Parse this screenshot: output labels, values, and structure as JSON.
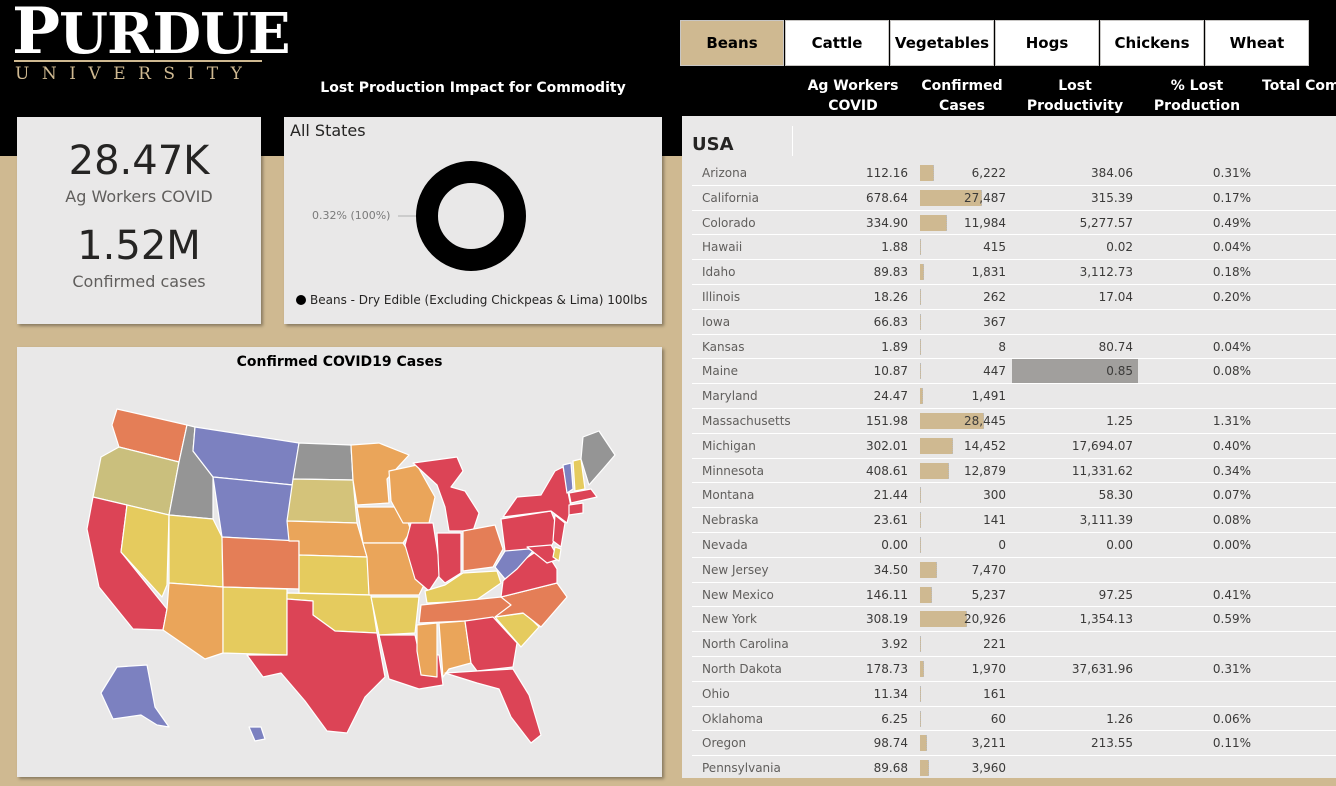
{
  "brand": {
    "name_big": "P",
    "name_rest": "URDUE",
    "sub": "UNIVERSITY"
  },
  "section_title": "Lost Production Impact for Commodity",
  "kpis": {
    "workers_value": "28.47K",
    "workers_label": "Ag Workers COVID",
    "cases_value": "1.52M",
    "cases_label": "Confirmed cases"
  },
  "donut": {
    "title": "All States",
    "label": "0.32% (100%)",
    "legend": "Beans - Dry Edible (Excluding Chickpeas & Lima) 100lbs",
    "share": 1.0,
    "color": "#000000"
  },
  "map": {
    "title": "Confirmed COVID19 Cases"
  },
  "tabs": [
    {
      "label": "Beans",
      "active": true
    },
    {
      "label": "Cattle",
      "active": false
    },
    {
      "label": "Vegetables",
      "active": false
    },
    {
      "label": "Hogs",
      "active": false
    },
    {
      "label": "Chickens",
      "active": false
    },
    {
      "label": "Wheat",
      "active": false
    }
  ],
  "columns": {
    "ag_workers": "Ag Workers COVID",
    "cases": "Confirmed Cases",
    "lost": "Lost Productivity",
    "pct": "% Lost Production",
    "total": "Total Comm"
  },
  "table": {
    "group": "USA",
    "max_cases": 28445,
    "rows": [
      {
        "state": "Arizona",
        "ag": "112.16",
        "cases": "6,222",
        "cases_num": 6222,
        "lost": "384.06",
        "pct": "0.31%"
      },
      {
        "state": "California",
        "ag": "678.64",
        "cases": "27,487",
        "cases_num": 27487,
        "lost": "315.39",
        "pct": "0.17%"
      },
      {
        "state": "Colorado",
        "ag": "334.90",
        "cases": "11,984",
        "cases_num": 11984,
        "lost": "5,277.57",
        "pct": "0.49%"
      },
      {
        "state": "Hawaii",
        "ag": "1.88",
        "cases": "415",
        "cases_num": 415,
        "lost": "0.02",
        "pct": "0.04%"
      },
      {
        "state": "Idaho",
        "ag": "89.83",
        "cases": "1,831",
        "cases_num": 1831,
        "lost": "3,112.73",
        "pct": "0.18%"
      },
      {
        "state": "Illinois",
        "ag": "18.26",
        "cases": "262",
        "cases_num": 262,
        "lost": "17.04",
        "pct": "0.20%"
      },
      {
        "state": "Iowa",
        "ag": "66.83",
        "cases": "367",
        "cases_num": 367,
        "lost": "",
        "pct": ""
      },
      {
        "state": "Kansas",
        "ag": "1.89",
        "cases": "8",
        "cases_num": 8,
        "lost": "80.74",
        "pct": "0.04%"
      },
      {
        "state": "Maine",
        "ag": "10.87",
        "cases": "447",
        "cases_num": 447,
        "lost": "0.85",
        "pct": "0.08%",
        "highlight": true
      },
      {
        "state": "Maryland",
        "ag": "24.47",
        "cases": "1,491",
        "cases_num": 1491,
        "lost": "",
        "pct": ""
      },
      {
        "state": "Massachusetts",
        "ag": "151.98",
        "cases": "28,445",
        "cases_num": 28445,
        "lost": "1.25",
        "pct": "1.31%"
      },
      {
        "state": "Michigan",
        "ag": "302.01",
        "cases": "14,452",
        "cases_num": 14452,
        "lost": "17,694.07",
        "pct": "0.40%"
      },
      {
        "state": "Minnesota",
        "ag": "408.61",
        "cases": "12,879",
        "cases_num": 12879,
        "lost": "11,331.62",
        "pct": "0.34%"
      },
      {
        "state": "Montana",
        "ag": "21.44",
        "cases": "300",
        "cases_num": 300,
        "lost": "58.30",
        "pct": "0.07%"
      },
      {
        "state": "Nebraska",
        "ag": "23.61",
        "cases": "141",
        "cases_num": 141,
        "lost": "3,111.39",
        "pct": "0.08%"
      },
      {
        "state": "Nevada",
        "ag": "0.00",
        "cases": "0",
        "cases_num": 0,
        "lost": "0.00",
        "pct": "0.00%"
      },
      {
        "state": "New Jersey",
        "ag": "34.50",
        "cases": "7,470",
        "cases_num": 7470,
        "lost": "",
        "pct": ""
      },
      {
        "state": "New Mexico",
        "ag": "146.11",
        "cases": "5,237",
        "cases_num": 5237,
        "lost": "97.25",
        "pct": "0.41%"
      },
      {
        "state": "New York",
        "ag": "308.19",
        "cases": "20,926",
        "cases_num": 20926,
        "lost": "1,354.13",
        "pct": "0.59%"
      },
      {
        "state": "North Carolina",
        "ag": "3.92",
        "cases": "221",
        "cases_num": 221,
        "lost": "",
        "pct": ""
      },
      {
        "state": "North Dakota",
        "ag": "178.73",
        "cases": "1,970",
        "cases_num": 1970,
        "lost": "37,631.96",
        "pct": "0.31%"
      },
      {
        "state": "Ohio",
        "ag": "11.34",
        "cases": "161",
        "cases_num": 161,
        "lost": "",
        "pct": ""
      },
      {
        "state": "Oklahoma",
        "ag": "6.25",
        "cases": "60",
        "cases_num": 60,
        "lost": "1.26",
        "pct": "0.06%"
      },
      {
        "state": "Oregon",
        "ag": "98.74",
        "cases": "3,211",
        "cases_num": 3211,
        "lost": "213.55",
        "pct": "0.11%"
      },
      {
        "state": "Pennsylvania",
        "ag": "89.68",
        "cases": "3,960",
        "cases_num": 3960,
        "lost": "",
        "pct": ""
      }
    ]
  },
  "colors": {
    "gold": "#cfb991",
    "black": "#000000",
    "panel": "#e9e8e8",
    "red": "#dc4456",
    "orange": "#e47e57",
    "light_orange": "#eaa55a",
    "yellow": "#e5cb5e",
    "khaki": "#cabf7d",
    "purple": "#7c81c0",
    "gray": "#959595"
  }
}
